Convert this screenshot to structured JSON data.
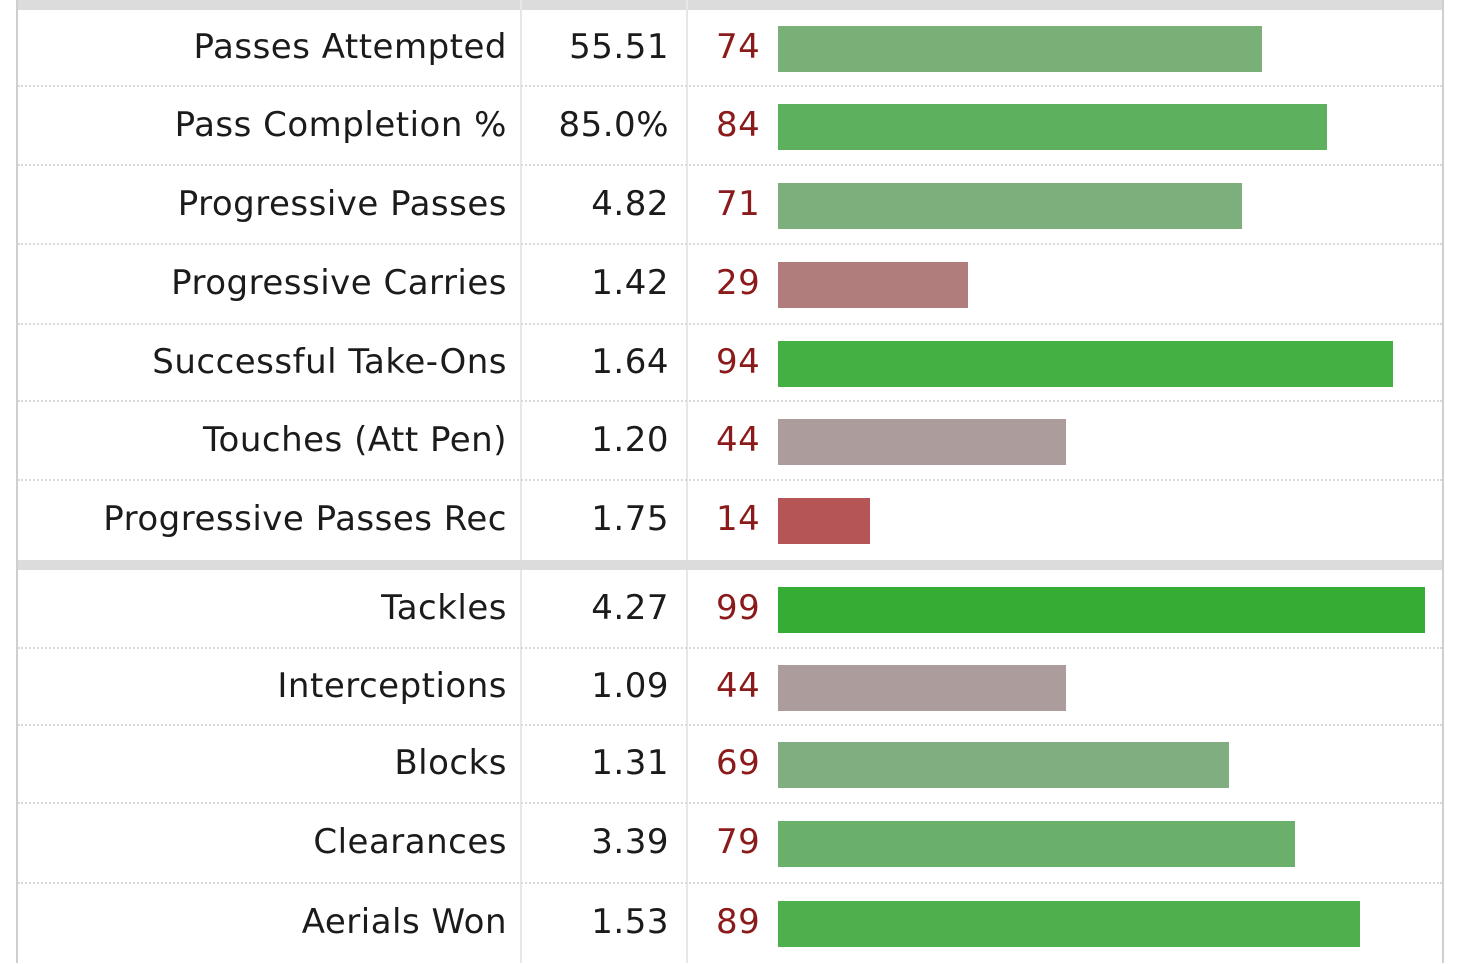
{
  "chart_data": {
    "type": "bar",
    "orientation": "horizontal",
    "sections": [
      {
        "rows": [
          {
            "label": "Passes Attempted",
            "value": "55.51",
            "percentile": 74,
            "color": "#78b078"
          },
          {
            "label": "Pass Completion %",
            "value": "85.0%",
            "percentile": 84,
            "color": "#5db05d"
          },
          {
            "label": "Progressive Passes",
            "value": "4.82",
            "percentile": 71,
            "color": "#7caf7c"
          },
          {
            "label": "Progressive Carries",
            "value": "1.42",
            "percentile": 29,
            "color": "#b07c7c"
          },
          {
            "label": "Successful Take-Ons",
            "value": "1.64",
            "percentile": 94,
            "color": "#44b044"
          },
          {
            "label": "Touches (Att Pen)",
            "value": "1.20",
            "percentile": 44,
            "color": "#ad9c9c"
          },
          {
            "label": "Progressive Passes Rec",
            "value": "1.75",
            "percentile": 14,
            "color": "#b55555"
          }
        ]
      },
      {
        "rows": [
          {
            "label": "Tackles",
            "value": "4.27",
            "percentile": 99,
            "color": "#35ad35"
          },
          {
            "label": "Interceptions",
            "value": "1.09",
            "percentile": 44,
            "color": "#ad9c9c"
          },
          {
            "label": "Blocks",
            "value": "1.31",
            "percentile": 69,
            "color": "#80ae80"
          },
          {
            "label": "Clearances",
            "value": "3.39",
            "percentile": 79,
            "color": "#6aaf6a"
          },
          {
            "label": "Aerials Won",
            "value": "1.53",
            "percentile": 89,
            "color": "#4db04d"
          }
        ]
      }
    ],
    "xlim": [
      0,
      100
    ]
  }
}
